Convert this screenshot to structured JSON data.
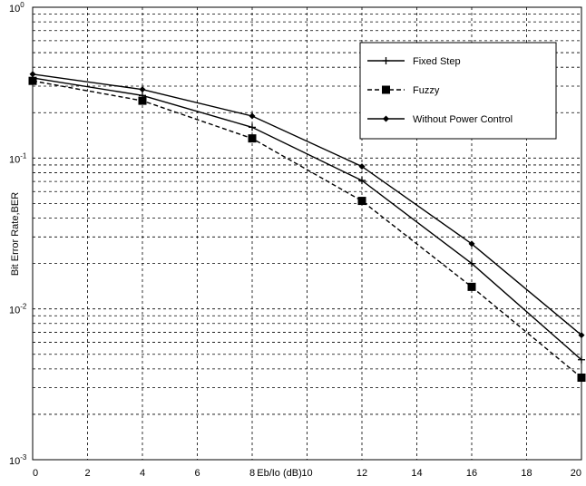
{
  "chart_data": {
    "type": "line",
    "title": "",
    "xlabel": "Eb/Io (dB)",
    "ylabel": "Bit Error Rate,BER",
    "x_scale": "linear",
    "y_scale": "log",
    "xlim": [
      0,
      20
    ],
    "ylim": [
      0.001,
      1
    ],
    "x_ticks": [
      0,
      2,
      4,
      6,
      8,
      10,
      12,
      14,
      16,
      18,
      20
    ],
    "x_tick_labels": [
      "0",
      "2",
      "4",
      "6",
      "8",
      "10",
      "12",
      "14",
      "16",
      "18",
      "20"
    ],
    "y_tick_labels": [
      {
        "value": 1,
        "base": "10",
        "exp": "0"
      },
      {
        "value": 0.1,
        "base": "10",
        "exp": "-1"
      },
      {
        "value": 0.01,
        "base": "10",
        "exp": "-2"
      },
      {
        "value": 0.001,
        "base": "10",
        "exp": "-3"
      }
    ],
    "grid": true,
    "grid_style": "dashed",
    "legend_position": "top-right",
    "x": [
      0,
      4,
      8,
      12,
      16,
      20
    ],
    "series": [
      {
        "name": "Fixed Step",
        "marker": "plus",
        "line": "solid",
        "color": "#000000",
        "values": [
          0.34,
          0.26,
          0.16,
          0.071,
          0.02,
          0.0046
        ]
      },
      {
        "name": "Fuzzy",
        "marker": "square",
        "line": "dashed",
        "color": "#000000",
        "values": [
          0.325,
          0.24,
          0.135,
          0.052,
          0.014,
          0.0035
        ]
      },
      {
        "name": "Without Power Control",
        "marker": "diamond",
        "line": "solid",
        "color": "#000000",
        "values": [
          0.36,
          0.285,
          0.19,
          0.088,
          0.027,
          0.0067
        ]
      }
    ]
  }
}
